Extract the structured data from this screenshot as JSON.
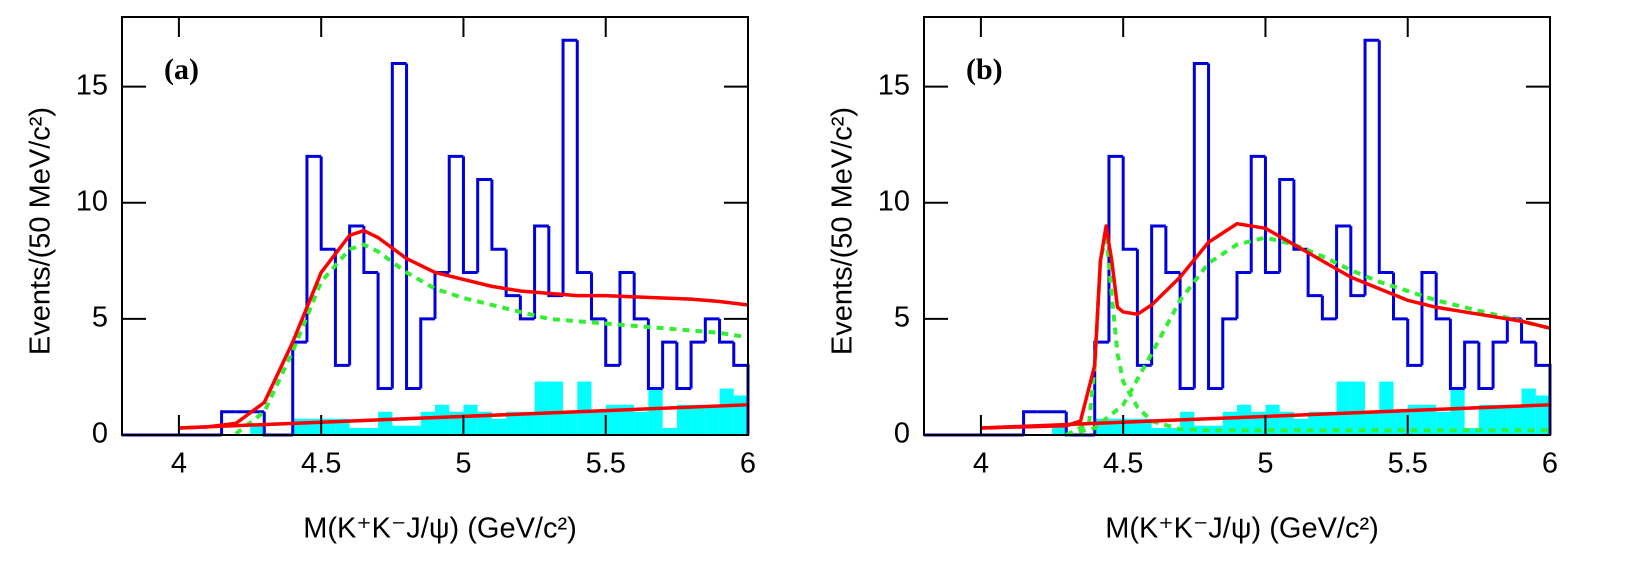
{
  "chart_data": [
    {
      "type": "histogram",
      "label": "(a)",
      "xlabel": "M(K⁺K⁻J/ψ) (GeV/c²)",
      "ylabel": "Events/(50 MeV/c²)",
      "xlim": [
        3.8,
        6
      ],
      "ylim": [
        0,
        18
      ],
      "xticks": [
        4,
        4.5,
        5,
        5.5,
        6
      ],
      "yticks": [
        0,
        5,
        10,
        15
      ],
      "bins": [
        3.8,
        3.85,
        3.9,
        3.95,
        4.0,
        4.05,
        4.1,
        4.15,
        4.2,
        4.25,
        4.3,
        4.35,
        4.4,
        4.45,
        4.5,
        4.55,
        4.6,
        4.65,
        4.7,
        4.75,
        4.8,
        4.85,
        4.9,
        4.95,
        5.0,
        5.05,
        5.1,
        5.15,
        5.2,
        5.25,
        5.3,
        5.35,
        5.4,
        5.45,
        5.5,
        5.55,
        5.6,
        5.65,
        5.7,
        5.75,
        5.8,
        5.85,
        5.9,
        5.95,
        6.0
      ],
      "data": {
        "color": "#0000dd",
        "values": [
          0,
          0,
          0,
          0,
          0,
          0,
          0,
          1,
          1,
          1,
          0,
          0,
          4,
          12,
          8,
          3,
          9,
          7,
          2,
          16,
          2,
          5,
          7,
          12,
          7,
          11,
          8,
          6,
          5,
          9,
          6,
          17,
          7,
          5,
          3,
          7,
          5,
          2,
          4,
          2,
          4,
          5,
          4,
          3
        ]
      },
      "background": {
        "color": "#00ffff",
        "values": [
          0,
          0,
          0,
          0,
          0,
          0,
          0,
          0,
          0,
          0.4,
          0,
          0,
          0.7,
          0.7,
          0.7,
          0.7,
          0.3,
          0.3,
          1.0,
          0.4,
          0.4,
          1.0,
          1.3,
          1.0,
          1.3,
          1.0,
          0.7,
          1.0,
          1.0,
          2.3,
          2.3,
          1.0,
          2.3,
          1.0,
          1.3,
          1.3,
          1.0,
          2.0,
          0.3,
          1.3,
          1.3,
          1.3,
          2.0,
          1.7
        ]
      },
      "curves": [
        {
          "color": "#33ee33",
          "style": "dashed",
          "x": [
            4.2,
            4.3,
            4.4,
            4.5,
            4.6,
            4.65,
            4.7,
            4.8,
            4.9,
            5.0,
            5.1,
            5.2,
            5.3,
            5.4,
            5.5,
            5.6,
            5.7,
            5.8,
            5.9,
            6.0
          ],
          "y": [
            0.05,
            1.0,
            3.6,
            6.6,
            8.0,
            8.2,
            7.9,
            7.0,
            6.3,
            5.9,
            5.6,
            5.3,
            5.0,
            4.9,
            4.8,
            4.7,
            4.6,
            4.5,
            4.4,
            4.2
          ]
        },
        {
          "color": "#ff0000",
          "style": "solid",
          "x": [
            4.0,
            6.0
          ],
          "y": [
            0.3,
            1.3
          ]
        },
        {
          "color": "#ff0000",
          "style": "solid",
          "x": [
            4.0,
            4.1,
            4.2,
            4.3,
            4.4,
            4.5,
            4.6,
            4.65,
            4.7,
            4.8,
            4.9,
            5.0,
            5.1,
            5.2,
            5.3,
            5.4,
            5.5,
            5.6,
            5.7,
            5.8,
            5.9,
            6.0
          ],
          "y": [
            0.3,
            0.35,
            0.5,
            1.4,
            4.0,
            7.0,
            8.6,
            8.8,
            8.5,
            7.6,
            7.0,
            6.7,
            6.4,
            6.2,
            6.1,
            6.0,
            6.0,
            5.95,
            5.9,
            5.85,
            5.75,
            5.6
          ]
        }
      ]
    },
    {
      "type": "histogram",
      "label": "(b)",
      "xlabel": "M(K⁺K⁻J/ψ) (GeV/c²)",
      "ylabel": "Events/(50 MeV/c²)",
      "xlim": [
        3.8,
        6
      ],
      "ylim": [
        0,
        18
      ],
      "xticks": [
        4,
        4.5,
        5,
        5.5,
        6
      ],
      "yticks": [
        0,
        5,
        10,
        15
      ],
      "bins": [
        3.8,
        3.85,
        3.9,
        3.95,
        4.0,
        4.05,
        4.1,
        4.15,
        4.2,
        4.25,
        4.3,
        4.35,
        4.4,
        4.45,
        4.5,
        4.55,
        4.6,
        4.65,
        4.7,
        4.75,
        4.8,
        4.85,
        4.9,
        4.95,
        5.0,
        5.05,
        5.1,
        5.15,
        5.2,
        5.25,
        5.3,
        5.35,
        5.4,
        5.45,
        5.5,
        5.55,
        5.6,
        5.65,
        5.7,
        5.75,
        5.8,
        5.85,
        5.9,
        5.95,
        6.0
      ],
      "data": {
        "color": "#0000dd",
        "values": [
          0,
          0,
          0,
          0,
          0,
          0,
          0,
          1,
          1,
          1,
          0,
          0,
          4,
          12,
          8,
          3,
          9,
          7,
          2,
          16,
          2,
          5,
          7,
          12,
          7,
          11,
          8,
          6,
          5,
          9,
          6,
          17,
          7,
          5,
          3,
          7,
          5,
          2,
          4,
          2,
          4,
          5,
          4,
          3
        ]
      },
      "background": {
        "color": "#00ffff",
        "values": [
          0,
          0,
          0,
          0,
          0,
          0,
          0,
          0,
          0,
          0.4,
          0,
          0,
          0.7,
          0.7,
          0.7,
          0.7,
          0.3,
          0.3,
          1.0,
          0.4,
          0.4,
          1.0,
          1.3,
          1.0,
          1.3,
          1.0,
          0.7,
          1.0,
          1.0,
          2.3,
          2.3,
          1.0,
          2.3,
          1.0,
          1.3,
          1.3,
          1.0,
          2.0,
          0.3,
          1.3,
          1.3,
          1.3,
          2.0,
          1.7
        ]
      },
      "curves": [
        {
          "color": "#33ee33",
          "style": "dashed",
          "x": [
            4.3,
            4.38,
            4.4,
            4.42,
            4.44,
            4.46,
            4.48,
            4.5,
            4.55,
            4.6,
            4.7,
            4.8,
            5.0,
            5.5,
            6.0
          ],
          "y": [
            0,
            0.5,
            3.0,
            7.5,
            8.7,
            6.0,
            3.5,
            2.3,
            1.2,
            0.6,
            0.25,
            0.2,
            0.2,
            0.2,
            0.2
          ]
        },
        {
          "color": "#33ee33",
          "style": "dashed",
          "x": [
            4.3,
            4.4,
            4.5,
            4.6,
            4.7,
            4.8,
            4.9,
            5.0,
            5.1,
            5.2,
            5.3,
            5.4,
            5.5,
            5.6,
            5.7,
            5.8,
            5.9,
            6.0
          ],
          "y": [
            0,
            0.3,
            1.3,
            3.5,
            5.8,
            7.4,
            8.2,
            8.5,
            8.2,
            7.7,
            7.1,
            6.6,
            6.2,
            5.8,
            5.5,
            5.2,
            4.9,
            4.6
          ]
        },
        {
          "color": "#ff0000",
          "style": "solid",
          "x": [
            4.0,
            6.0
          ],
          "y": [
            0.3,
            1.3
          ]
        },
        {
          "color": "#ff0000",
          "style": "solid",
          "x": [
            4.0,
            4.3,
            4.35,
            4.4,
            4.42,
            4.44,
            4.46,
            4.48,
            4.5,
            4.55,
            4.6,
            4.7,
            4.8,
            4.9,
            5.0,
            5.1,
            5.2,
            5.3,
            5.4,
            5.5,
            5.6,
            5.7,
            5.8,
            5.9,
            6.0
          ],
          "y": [
            0.3,
            0.4,
            0.6,
            3.0,
            7.5,
            9.0,
            7.5,
            5.5,
            5.3,
            5.2,
            5.6,
            6.8,
            8.3,
            9.1,
            8.9,
            8.2,
            7.5,
            6.8,
            6.3,
            5.8,
            5.5,
            5.3,
            5.1,
            4.9,
            4.6
          ]
        }
      ]
    }
  ]
}
